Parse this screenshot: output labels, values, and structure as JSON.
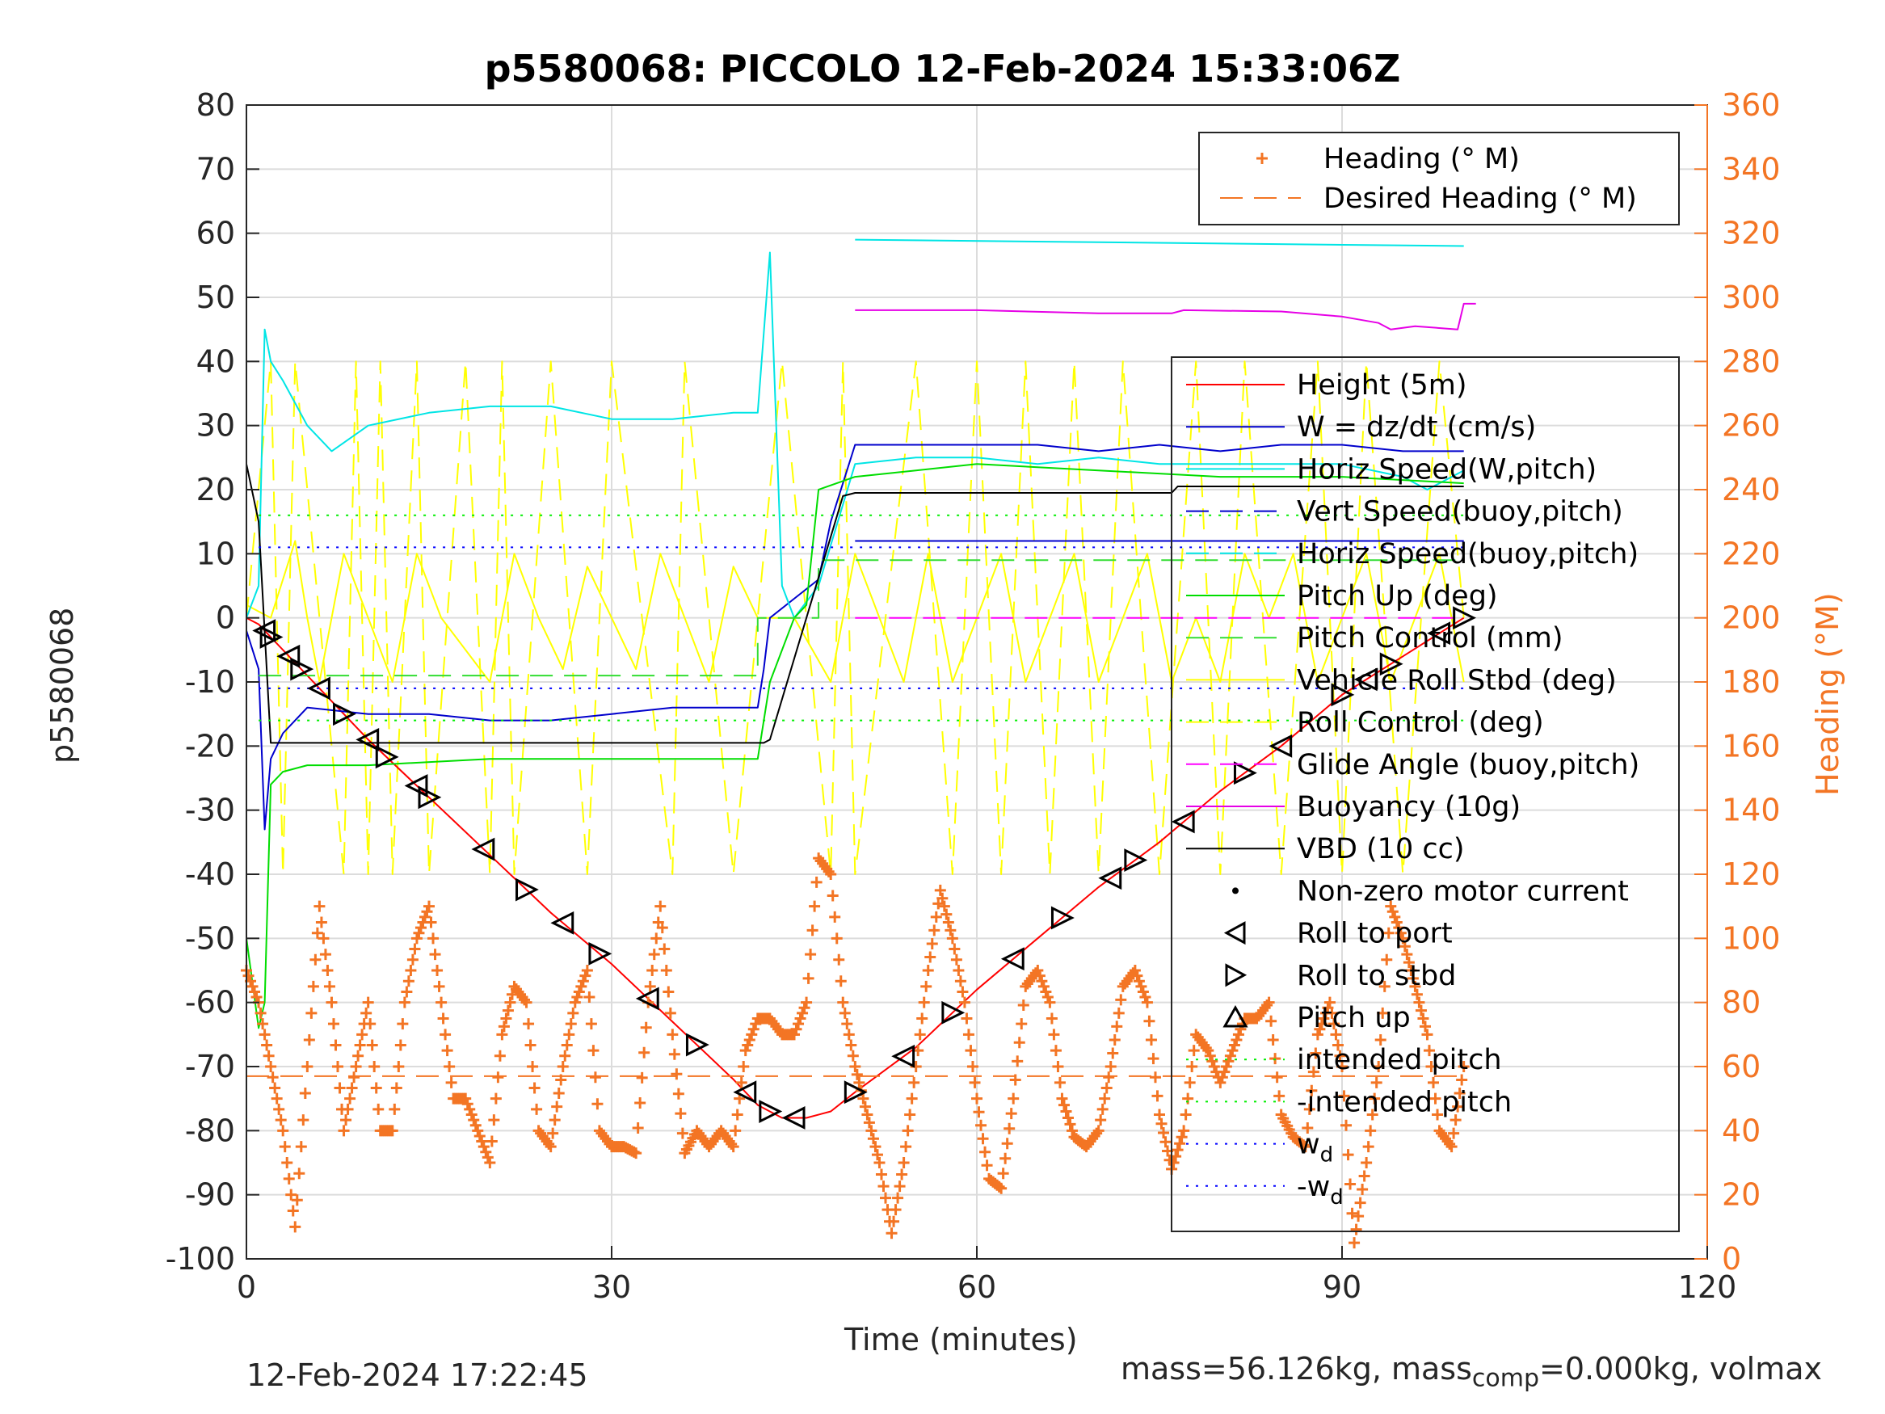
{
  "title": "p5580068: PICCOLO 12-Feb-2024 15:33:06Z",
  "footer_left": "12-Feb-2024 17:22:45",
  "footer_right": {
    "part1": "mass=56.126kg, mass",
    "sub": "comp",
    "part2": "=0.000kg, volmax"
  },
  "colors": {
    "heading": "#f37524",
    "height": "#ff0000",
    "w": "#0000cc",
    "horiz_speed_w": "#00e5e5",
    "pitch_up": "#00dd00",
    "pitch_control": "#33dd33",
    "roll": "#ffff00",
    "glide": "#ff00ff",
    "buoyancy": "#e600e6",
    "vbd": "#000000",
    "intended_pitch": "#00ee00",
    "wd": "#0000ff"
  },
  "chart_data": {
    "type": "line",
    "title": "p5580068: PICCOLO 12-Feb-2024 15:33:06Z",
    "xlabel": "Time (minutes)",
    "ylabel_left": "p5580068",
    "ylabel_right": "Heading (°M)",
    "xlim": [
      0,
      120
    ],
    "ylim_left": [
      -100,
      80
    ],
    "ylim_right": [
      0,
      360
    ],
    "xticks": [
      "0",
      "30",
      "60",
      "90",
      "120"
    ],
    "yticks_left": [
      "80",
      "70",
      "60",
      "50",
      "40",
      "30",
      "20",
      "10",
      "0",
      "-10",
      "-20",
      "-30",
      "-40",
      "-50",
      "-60",
      "-70",
      "-80",
      "-90",
      "-100"
    ],
    "yticks_right": [
      "360",
      "340",
      "320",
      "300",
      "280",
      "260",
      "240",
      "220",
      "200",
      "180",
      "160",
      "140",
      "120",
      "100",
      "80",
      "60",
      "40",
      "20",
      "0"
    ],
    "grid": true,
    "legend_heading": [
      {
        "label": "Heading (° M)",
        "style": "plus"
      },
      {
        "label": "Desired Heading (° M)",
        "style": "dash"
      }
    ],
    "legend_main": [
      {
        "label": "Height (5m)",
        "style": "solid",
        "color": "#ff0000"
      },
      {
        "label": "W = dz/dt (cm/s)",
        "style": "solid",
        "color": "#0000cc"
      },
      {
        "label": "Horiz Speed(W,pitch)",
        "style": "solid",
        "color": "#00e5e5"
      },
      {
        "label": "Vert Speed(buoy,pitch)",
        "style": "dash",
        "color": "#0000cc"
      },
      {
        "label": "Horiz Speed(buoy,pitch)",
        "style": "dash",
        "color": "#00e5e5"
      },
      {
        "label": "Pitch Up (deg)",
        "style": "solid",
        "color": "#00dd00"
      },
      {
        "label": "Pitch Control (mm)",
        "style": "dash",
        "color": "#33dd33"
      },
      {
        "label": "Vehicle Roll Stbd (deg)",
        "style": "solid",
        "color": "#ffff00"
      },
      {
        "label": "Roll Control (deg)",
        "style": "dash",
        "color": "#ffff00"
      },
      {
        "label": "Glide Angle (buoy,pitch)",
        "style": "dash",
        "color": "#ff00ff"
      },
      {
        "label": "Buoyancy (10g)",
        "style": "solid",
        "color": "#e600e6"
      },
      {
        "label": "VBD (10 cc)",
        "style": "solid",
        "color": "#000000"
      },
      {
        "label": "Non-zero motor current",
        "style": "dot",
        "color": "#000000"
      },
      {
        "label": "Roll to port",
        "style": "tri-left",
        "color": "#000000"
      },
      {
        "label": "Roll to stbd",
        "style": "tri-right",
        "color": "#000000"
      },
      {
        "label": "Pitch up",
        "style": "tri-up",
        "color": "#000000"
      },
      {
        "label": "intended pitch",
        "style": "dotted",
        "color": "#00ee00"
      },
      {
        "label": "-intended pitch",
        "style": "dotted",
        "color": "#00ee00"
      },
      {
        "label": "w",
        "sub": "d",
        "style": "dotted",
        "color": "#0000ff"
      },
      {
        "label": "-w",
        "sub": "d",
        "style": "dotted",
        "color": "#0000ff"
      }
    ],
    "series": [
      {
        "name": "Height (5m)",
        "x": [
          0,
          1,
          2,
          5,
          10,
          15,
          20,
          25,
          30,
          35,
          40,
          42,
          44,
          46,
          48,
          50,
          55,
          60,
          65,
          70,
          75,
          80,
          85,
          90,
          95,
          100
        ],
        "y": [
          0,
          -1,
          -3,
          -9,
          -19,
          -28,
          -37,
          -46,
          -54,
          -63,
          -72,
          -76,
          -78,
          -78,
          -77,
          -74,
          -67,
          -58,
          -50,
          -42,
          -35,
          -27,
          -20,
          -12,
          -6,
          0
        ]
      },
      {
        "name": "W = dz/dt (cm/s)",
        "x": [
          0,
          1,
          1.5,
          2,
          3,
          5,
          10,
          15,
          20,
          25,
          30,
          35,
          40,
          42,
          42.5,
          43,
          45,
          47,
          48,
          50,
          55,
          60,
          65,
          70,
          75,
          80,
          85,
          90,
          95,
          100
        ],
        "y": [
          -2,
          -8,
          -33,
          -22,
          -18,
          -14,
          -15,
          -15,
          -16,
          -16,
          -15,
          -14,
          -14,
          -14,
          -8,
          0,
          3,
          6,
          15,
          27,
          27,
          27,
          27,
          26,
          27,
          26,
          27,
          27,
          26,
          26
        ]
      },
      {
        "name": "Horiz Speed(W,pitch)",
        "x": [
          0,
          1,
          1.5,
          2,
          3,
          5,
          7,
          10,
          15,
          20,
          25,
          30,
          35,
          40,
          42,
          43,
          44,
          45,
          47,
          50,
          55,
          60,
          65,
          70,
          75,
          80,
          85,
          90,
          95,
          97,
          100
        ],
        "y": [
          0,
          5,
          45,
          40,
          37,
          30,
          26,
          30,
          32,
          33,
          33,
          31,
          31,
          32,
          32,
          57,
          5,
          0,
          5,
          24,
          25,
          25,
          24,
          25,
          24,
          24,
          24,
          24,
          22,
          20,
          23
        ]
      },
      {
        "name": "Vert Speed(buoy,pitch)",
        "x": [
          50,
          100
        ],
        "y": [
          12,
          12
        ]
      },
      {
        "name": "Horiz Speed(buoy,pitch)",
        "x": [
          50,
          100
        ],
        "y": [
          59,
          58
        ]
      },
      {
        "name": "Pitch Up (deg)",
        "x": [
          0,
          1,
          1.5,
          2,
          3,
          5,
          10,
          20,
          30,
          40,
          42,
          43,
          45,
          46,
          47,
          50,
          55,
          60,
          70,
          80,
          90,
          100
        ],
        "y": [
          -50,
          -64,
          -60,
          -26,
          -24,
          -23,
          -23,
          -22,
          -22,
          -22,
          -22,
          -10,
          0,
          2,
          20,
          22,
          23,
          24,
          23,
          22,
          22,
          21
        ]
      },
      {
        "name": "Pitch Control (mm)",
        "x": [
          1,
          42,
          42,
          47,
          47,
          100
        ],
        "y": [
          -9,
          -9,
          0,
          0,
          9,
          9
        ]
      },
      {
        "name": "Vehicle Roll Stbd (deg)",
        "x": [
          0,
          2,
          4,
          5,
          6,
          8,
          10,
          12,
          14,
          16,
          20,
          22,
          24,
          26,
          28,
          30,
          32,
          34,
          36,
          38,
          40,
          42,
          45,
          48,
          50,
          52,
          54,
          56,
          58,
          60,
          62,
          64,
          66,
          68,
          70,
          72,
          74,
          76,
          78,
          80,
          82,
          84,
          86,
          88,
          90,
          92,
          94,
          96,
          98,
          100
        ],
        "y": [
          2,
          0,
          12,
          0,
          -10,
          10,
          0,
          -10,
          10,
          0,
          -10,
          10,
          0,
          -8,
          8,
          0,
          -8,
          10,
          0,
          -10,
          8,
          0,
          0,
          -10,
          10,
          0,
          -10,
          10,
          -10,
          0,
          10,
          -10,
          0,
          10,
          -10,
          0,
          10,
          -10,
          0,
          -10,
          10,
          0,
          10,
          -10,
          0,
          10,
          -10,
          0,
          10,
          -10
        ]
      },
      {
        "name": "Roll Control (deg)",
        "x": [
          0,
          2,
          3,
          4,
          8,
          9,
          10,
          11,
          12,
          14,
          15,
          18,
          20,
          21,
          22,
          25,
          28,
          30,
          35,
          36,
          40,
          42,
          44,
          48,
          49,
          50,
          55,
          58,
          60,
          62,
          64,
          66,
          68,
          70,
          72,
          75,
          78,
          80,
          82,
          85,
          88,
          90,
          92,
          95,
          98,
          100
        ],
        "y": [
          0,
          40,
          -40,
          40,
          -40,
          40,
          -40,
          40,
          -40,
          40,
          -40,
          40,
          -40,
          40,
          -40,
          40,
          -40,
          40,
          -40,
          40,
          -40,
          0,
          40,
          -40,
          40,
          -40,
          40,
          -40,
          40,
          -40,
          40,
          -40,
          40,
          -40,
          40,
          -40,
          40,
          -40,
          40,
          -40,
          40,
          -40,
          40,
          -40,
          40,
          0
        ]
      },
      {
        "name": "Glide Angle (buoy,pitch)",
        "x": [
          50,
          100
        ],
        "y": [
          0,
          0
        ]
      },
      {
        "name": "Buoyancy (10g)",
        "x": [
          50,
          60,
          70,
          76,
          77,
          85,
          90,
          93,
          94,
          96,
          99.5,
          100,
          101
        ],
        "y": [
          48,
          48,
          47.5,
          47.5,
          48,
          47.8,
          47,
          46,
          45,
          45.5,
          45,
          49,
          49
        ]
      },
      {
        "name": "VBD (10 cc)",
        "x": [
          0,
          1,
          2,
          10,
          20,
          30,
          40,
          42.5,
          43,
          49,
          50,
          60,
          70,
          76,
          76.5,
          90,
          100
        ],
        "y": [
          24,
          15,
          -19.5,
          -19.5,
          -19.5,
          -19.5,
          -19.5,
          -19.5,
          -19,
          19,
          19.5,
          19.5,
          19.5,
          19.5,
          20.5,
          20.5,
          20.5
        ]
      },
      {
        "name": "intended pitch",
        "x": [
          1,
          100
        ],
        "y": [
          16,
          16
        ]
      },
      {
        "name": "-intended pitch",
        "x": [
          1,
          100
        ],
        "y": [
          -16,
          -16
        ]
      },
      {
        "name": "w_d",
        "x": [
          1,
          100
        ],
        "y": [
          11,
          11
        ]
      },
      {
        "name": "-w_d",
        "x": [
          1,
          100
        ],
        "y": [
          -11,
          -11
        ]
      },
      {
        "name": "Desired Heading (° M)",
        "axis": "right",
        "x": [
          0,
          100
        ],
        "y": [
          57,
          57
        ]
      },
      {
        "name": "Heading (° M)",
        "axis": "right",
        "x": [
          0,
          1,
          2,
          3,
          4,
          5,
          6,
          7,
          8,
          9,
          10,
          11,
          12,
          13,
          14,
          15,
          16,
          17,
          18,
          19,
          20,
          21,
          22,
          23,
          24,
          25,
          26,
          27,
          28,
          29,
          30,
          31,
          32,
          33,
          34,
          35,
          36,
          37,
          38,
          39,
          40,
          41,
          42,
          43,
          44,
          45,
          46,
          47,
          48,
          49,
          50,
          51,
          52,
          53,
          54,
          55,
          56,
          57,
          58,
          59,
          60,
          61,
          62,
          63,
          64,
          65,
          66,
          67,
          68,
          69,
          70,
          71,
          72,
          73,
          74,
          75,
          76,
          77,
          78,
          79,
          80,
          81,
          82,
          83,
          84,
          85,
          86,
          87,
          88,
          89,
          90,
          91,
          92,
          93,
          94,
          95,
          96,
          97,
          98,
          99,
          100
        ],
        "y": [
          90,
          80,
          60,
          40,
          10,
          60,
          110,
          80,
          40,
          60,
          80,
          40,
          40,
          80,
          100,
          110,
          80,
          50,
          50,
          40,
          30,
          70,
          85,
          80,
          40,
          35,
          60,
          80,
          90,
          40,
          35,
          35,
          33,
          80,
          110,
          70,
          33,
          40,
          35,
          40,
          35,
          65,
          75,
          75,
          70,
          70,
          80,
          125,
          120,
          80,
          60,
          45,
          30,
          8,
          30,
          60,
          90,
          115,
          100,
          80,
          50,
          25,
          22,
          50,
          85,
          90,
          80,
          50,
          38,
          35,
          40,
          60,
          85,
          90,
          80,
          45,
          28,
          40,
          70,
          65,
          55,
          65,
          75,
          75,
          80,
          45,
          38,
          35,
          70,
          80,
          60,
          5,
          30,
          60,
          110,
          100,
          85,
          70,
          40,
          35,
          60
        ]
      }
    ]
  }
}
